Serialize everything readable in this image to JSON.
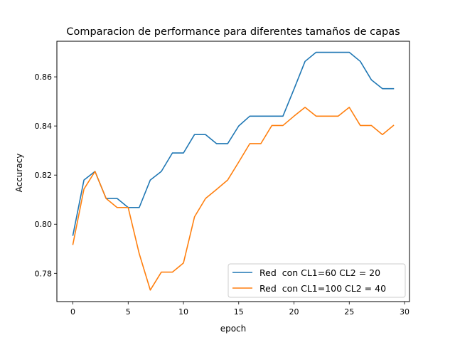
{
  "chart_data": {
    "type": "line",
    "title": "Comparacion de performance para diferentes tamaños de capas",
    "xlabel": "epoch",
    "ylabel": "Accuracy",
    "xlim": [
      -1.45,
      30.45
    ],
    "ylim": [
      0.7685,
      0.8745
    ],
    "xticks": [
      0,
      5,
      10,
      15,
      20,
      25,
      30
    ],
    "yticks": [
      0.78,
      0.8,
      0.82,
      0.84,
      0.86
    ],
    "ytick_labels": [
      "0.78",
      "0.80",
      "0.82",
      "0.84",
      "0.86"
    ],
    "grid": false,
    "legend_position": "lower right",
    "x": [
      0,
      1,
      2,
      3,
      4,
      5,
      6,
      7,
      8,
      9,
      10,
      11,
      12,
      13,
      14,
      15,
      16,
      17,
      18,
      19,
      20,
      21,
      22,
      23,
      24,
      25,
      26,
      27,
      28,
      29
    ],
    "series": [
      {
        "name": "Red  con CL1=60 CL2 = 20",
        "color": "#1f77b4",
        "values": [
          0.7955,
          0.818,
          0.8215,
          0.8105,
          0.8105,
          0.8068,
          0.8068,
          0.818,
          0.8215,
          0.829,
          0.829,
          0.8365,
          0.8365,
          0.8328,
          0.8328,
          0.84,
          0.844,
          0.844,
          0.844,
          0.844,
          0.855,
          0.8663,
          0.87,
          0.87,
          0.87,
          0.87,
          0.8663,
          0.8588,
          0.8552,
          0.8552
        ]
      },
      {
        "name": "Red  con CL1=100 CL2 = 40",
        "color": "#ff7f0e",
        "values": [
          0.7918,
          0.8143,
          0.8215,
          0.8105,
          0.8068,
          0.8068,
          0.788,
          0.7732,
          0.7805,
          0.7805,
          0.7842,
          0.803,
          0.8105,
          0.8142,
          0.818,
          0.8253,
          0.8328,
          0.8328,
          0.8402,
          0.8402,
          0.844,
          0.8476,
          0.844,
          0.844,
          0.844,
          0.8476,
          0.8402,
          0.8402,
          0.8365,
          0.8402
        ]
      }
    ]
  }
}
